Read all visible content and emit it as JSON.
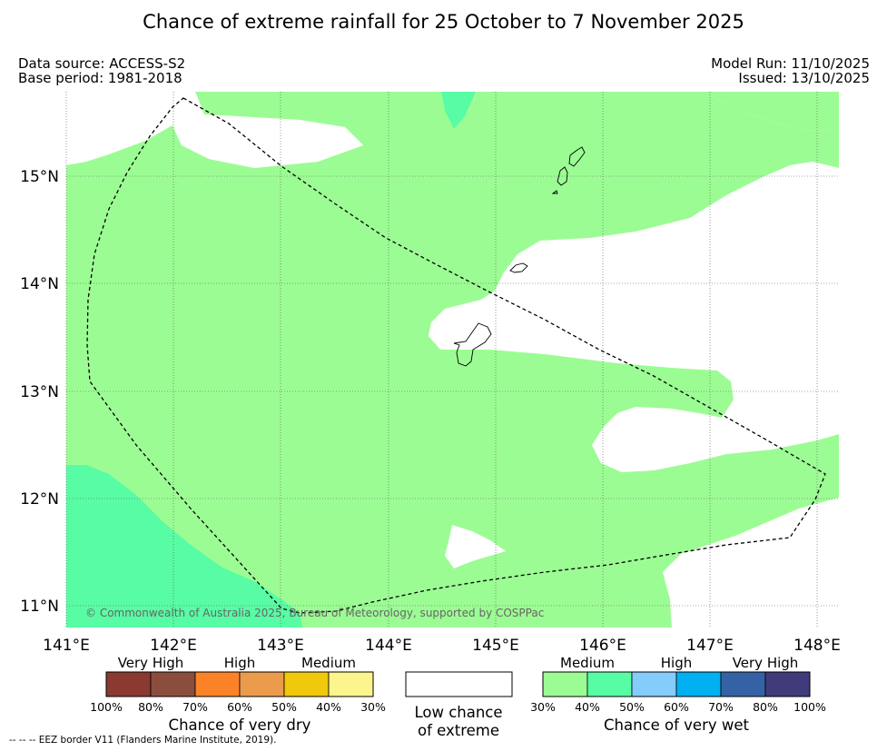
{
  "title": "Chance of extreme rainfall for 25 October to 7 November 2025",
  "meta": {
    "data_source": "Data source: ACCESS-S2",
    "base_period": "Base period: 1981-2018",
    "model_run": "Model Run: 11/10/2025",
    "issued": "Issued: 13/10/2025"
  },
  "map": {
    "lon_labels": [
      "141°E",
      "142°E",
      "143°E",
      "144°E",
      "145°E",
      "146°E",
      "147°E",
      "148°E"
    ],
    "lat_labels": [
      "15°N",
      "14°N",
      "13°N",
      "12°N",
      "11°N"
    ],
    "copyright": "© Commonwealth of Australia 2025, Bureau of Meteorology, supported by COSPPac",
    "colors": {
      "wet_medium": "#9cfc94",
      "wet_30_40": "#9cfc94",
      "wet_40_50": "#58fca4",
      "low": "#ffffff"
    }
  },
  "legend": {
    "dry": {
      "title": "Chance of very dry",
      "categories": [
        "Very High",
        "High",
        "Medium"
      ],
      "ticks": [
        "100%",
        "80%",
        "70%",
        "60%",
        "50%",
        "40%",
        "30%"
      ],
      "colors": [
        "#8b3a32",
        "#8c4e3c",
        "#fc8228",
        "#ec9a4c",
        "#f0c80c",
        "#fcf48c"
      ]
    },
    "low": {
      "line1": "Low chance",
      "line2": "of extreme"
    },
    "wet": {
      "title": "Chance of very wet",
      "categories": [
        "Medium",
        "High",
        "Very High"
      ],
      "ticks": [
        "30%",
        "40%",
        "50%",
        "60%",
        "70%",
        "80%",
        "100%"
      ],
      "colors": [
        "#9cfc94",
        "#58fca4",
        "#84ccfc",
        "#00b0f0",
        "#3462a4",
        "#403c7c"
      ]
    }
  },
  "footnote": "--  --  -- EEZ border V11 (Flanders Marine Institute, 2019)."
}
